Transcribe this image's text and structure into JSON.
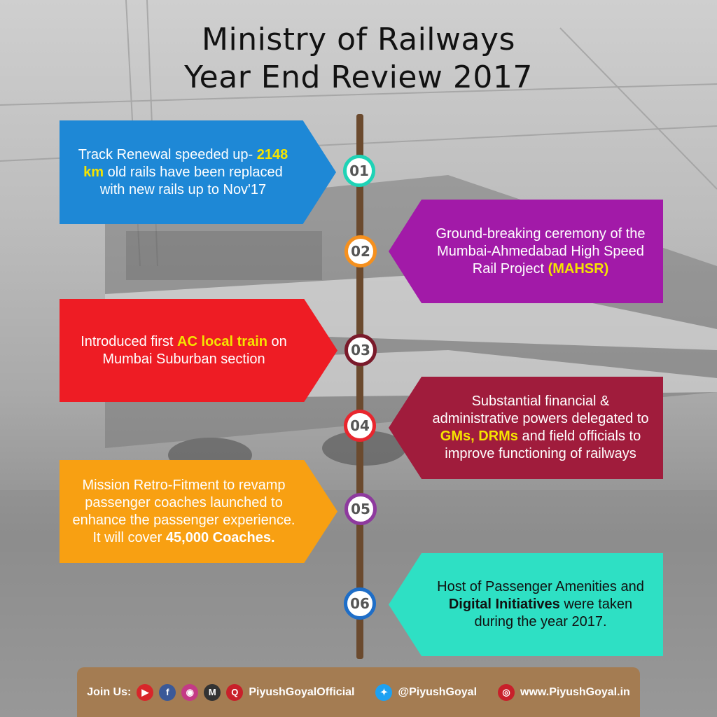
{
  "header": {
    "title_line1": "Ministry of Railways",
    "title_line2": "Year End Review 2017"
  },
  "items": [
    {
      "number": "01",
      "pre": "Track Renewal speeded up- ",
      "hl": "2148 km",
      "post": " old rails have been replaced with new rails up to Nov'17",
      "color": "#1e88d6",
      "accent": "#1fd3b6",
      "hl_color": "#f5e400"
    },
    {
      "number": "02",
      "pre": "Ground-breaking ceremony of the Mumbai-Ahmedabad High Speed Rail Project ",
      "hl": "(MAHSR)",
      "post": "",
      "color": "#a21aa8",
      "accent": "#f5901e",
      "hl_color": "#f5e400"
    },
    {
      "number": "03",
      "pre": "Introduced first ",
      "hl": "AC local train",
      "post": " on Mumbai Suburban section",
      "color": "#ee1c24",
      "accent": "#7a1a2a",
      "hl_color": "#f5e400"
    },
    {
      "number": "04",
      "pre": "Substantial financial & administrative powers delegated to ",
      "hl": "GMs, DRMs",
      "post": " and field officials to improve functioning of railways",
      "color": "#a01c3c",
      "accent": "#e8262e",
      "hl_color": "#f5e400"
    },
    {
      "number": "05",
      "pre": "Mission Retro-Fitment to revamp passenger coaches launched to enhance the passenger experience. It will cover ",
      "hl": "45,000 Coaches.",
      "post": "",
      "color": "#f8a012",
      "accent": "#8e3a9e",
      "hl_color": "#ffffff"
    },
    {
      "number": "06",
      "pre": "Host of Passenger Amenities and ",
      "hl": "Digital Initiatives",
      "post": " were taken during the year 2017.",
      "color": "#2ee0c4",
      "accent": "#1e6ec8",
      "hl_color": "#111111"
    }
  ],
  "footer": {
    "join_label": "Join Us:",
    "handle_label": "PiyushGoyalOfficial",
    "twitter_label": "@PiyushGoyal",
    "website_label": "www.PiyushGoyal.in",
    "icons": [
      "youtube-icon",
      "facebook-icon",
      "instagram-icon",
      "m-icon",
      "q-icon",
      "twitter-icon",
      "globe-icon"
    ]
  },
  "colors": {
    "pole": "#6b4a2e",
    "footer_bg": "#a47c52"
  }
}
